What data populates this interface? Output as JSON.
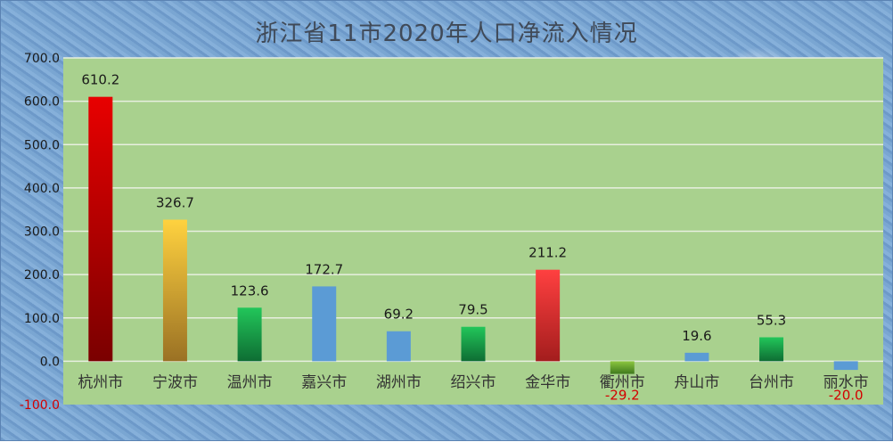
{
  "chart_data": {
    "type": "bar",
    "title": "浙江省11市2020年人口净流入情况",
    "categories": [
      "杭州市",
      "宁波市",
      "温州市",
      "嘉兴市",
      "湖州市",
      "绍兴市",
      "金华市",
      "衢州市",
      "舟山市",
      "台州市",
      "丽水市"
    ],
    "values": [
      610.2,
      326.7,
      123.6,
      172.7,
      69.2,
      79.5,
      211.2,
      -29.2,
      19.6,
      55.3,
      -20.0
    ],
    "value_labels": [
      "610.2",
      "326.7",
      "123.6",
      "172.7",
      "69.2",
      "79.5",
      "211.2",
      "-29.2",
      "19.6",
      "55.3",
      "-20.0"
    ],
    "yticks": [
      -100,
      0,
      100,
      200,
      300,
      400,
      500,
      600,
      700
    ],
    "ytick_labels": [
      "-100.0",
      "0.0",
      "100.0",
      "200.0",
      "300.0",
      "400.0",
      "500.0",
      "600.0",
      "700.0"
    ],
    "ylim": [
      -100,
      700
    ],
    "xlabel": "",
    "ylabel": "",
    "grid": true,
    "legend": "none",
    "colors": {
      "plot_background": "#a9d18e",
      "gridline": "#e8efe0",
      "negative_label": "#d40000",
      "bar_gradients": [
        [
          "#e80000",
          "#7a0000"
        ],
        [
          "#ffd23f",
          "#9a7124"
        ],
        [
          "#22c65a",
          "#0e6d33"
        ],
        [
          "#5b9bd5",
          "#5b9bd5"
        ],
        [
          "#5b9bd5",
          "#5b9bd5"
        ],
        [
          "#22c65a",
          "#0e6d33"
        ],
        [
          "#ff4040",
          "#a31d1d"
        ],
        [
          "#8cc63f",
          "#3f7a1d"
        ],
        [
          "#5b9bd5",
          "#5b9bd5"
        ],
        [
          "#22c65a",
          "#0e6d33"
        ],
        [
          "#5b9bd5",
          "#5b9bd5"
        ]
      ]
    }
  }
}
